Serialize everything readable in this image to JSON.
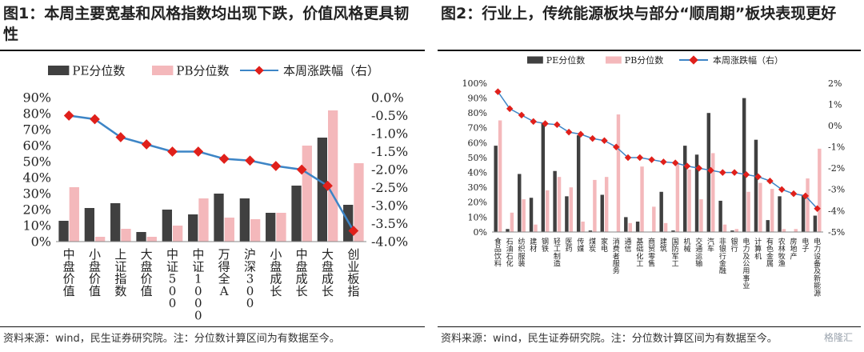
{
  "panels": [
    {
      "title": "图1：本周主要宽基和风格指数均出现下跌，价值风格更具韧性",
      "source": "资料来源：wind，民生证券研究院。注：分位数计算区间为有数据至今。"
    },
    {
      "title": "图2：行业上，传统能源板块与部分“顺周期”板块表现更好",
      "source": "资料来源：wind，民生证券研究院。注：分位数计算区间为有数据至今。"
    }
  ],
  "watermark": "格隆汇",
  "colors": {
    "pe": "#404040",
    "pb": "#f4b8bb",
    "line": "#3d85c6",
    "marker": "#e0201b"
  },
  "chart_data": [
    {
      "type": "bar",
      "legend": [
        "PE分位数",
        "PB分位数",
        "本周涨跌幅（右）"
      ],
      "legend_position": "top",
      "grid": false,
      "categories": [
        "中盘价值",
        "小盘价值",
        "上证指数",
        "大盘价值",
        "中证500",
        "中证1000",
        "万得全A",
        "沪深300",
        "小盘成长",
        "中盘成长",
        "大盘成长",
        "创业板指"
      ],
      "series": [
        {
          "name": "PE分位数",
          "axis": "left",
          "values": [
            13,
            21,
            24,
            6,
            20,
            17,
            30,
            27,
            18,
            35,
            65,
            23
          ]
        },
        {
          "name": "PB分位数",
          "axis": "left",
          "values": [
            34,
            3,
            8,
            3,
            10,
            27,
            15,
            14,
            18,
            60,
            82,
            49
          ]
        },
        {
          "name": "本周涨跌幅（右）",
          "axis": "right",
          "type": "line",
          "values": [
            -0.5,
            -0.6,
            -1.1,
            -1.3,
            -1.5,
            -1.5,
            -1.7,
            -1.75,
            -1.9,
            -2.0,
            -2.45,
            -3.7
          ]
        }
      ],
      "y_left": {
        "ylim": [
          0,
          90
        ],
        "ticks": [
          "0%",
          "10%",
          "20%",
          "30%",
          "40%",
          "50%",
          "60%",
          "70%",
          "80%",
          "90%"
        ]
      },
      "y_right": {
        "ylim": [
          -4.0,
          0.0
        ],
        "ticks": [
          "-4.0%",
          "-3.5%",
          "-3.0%",
          "-2.5%",
          "-2.0%",
          "-1.5%",
          "-1.0%",
          "-0.5%",
          "0.0%"
        ]
      }
    },
    {
      "type": "bar",
      "legend": [
        "PE分位数",
        "PB分位数",
        "本周涨跌幅（右）"
      ],
      "legend_position": "top",
      "grid": false,
      "categories": [
        "食品饮料",
        "石油石化",
        "纺织服装",
        "建材",
        "钢铁",
        "轻工制造",
        "医药",
        "传媒",
        "煤炭",
        "家电",
        "消费者服务",
        "通信",
        "基础化工",
        "商贸零售",
        "建筑",
        "国防军工",
        "机械",
        "交通运输",
        "汽车",
        "非银行金融",
        "银行",
        "电力及公用事业",
        "计算机",
        "有色金属",
        "农林牧渔",
        "房地产",
        "电子",
        "电力设备及新能源"
      ],
      "series": [
        {
          "name": "PE分位数",
          "axis": "left",
          "values": [
            58,
            2,
            39,
            23,
            73,
            41,
            24,
            65,
            1,
            25,
            0,
            10,
            7,
            0,
            27,
            1,
            58,
            52,
            80,
            21,
            1,
            90,
            62,
            8,
            24,
            0,
            25,
            11
          ]
        },
        {
          "name": "PB分位数",
          "axis": "left",
          "values": [
            75,
            13,
            22,
            5,
            28,
            37,
            30,
            7,
            35,
            37,
            79,
            6,
            44,
            17,
            6,
            46,
            42,
            22,
            53,
            5,
            2,
            27,
            33,
            29,
            2,
            2,
            36,
            56
          ]
        },
        {
          "name": "本周涨跌幅（右）",
          "axis": "right",
          "type": "line",
          "values": [
            1.6,
            0.8,
            0.5,
            0.2,
            0.1,
            0.05,
            -0.3,
            -0.4,
            -0.6,
            -0.7,
            -1.0,
            -1.5,
            -1.5,
            -1.6,
            -1.7,
            -1.75,
            -1.9,
            -2.0,
            -2.1,
            -2.2,
            -2.2,
            -2.3,
            -2.4,
            -2.6,
            -3.0,
            -3.2,
            -3.3,
            -3.9
          ]
        }
      ],
      "y_left": {
        "ylim": [
          0,
          100
        ],
        "ticks": [
          "0%",
          "10%",
          "20%",
          "30%",
          "40%",
          "50%",
          "60%",
          "70%",
          "80%",
          "90%",
          "100%"
        ]
      },
      "y_right": {
        "ylim": [
          -5,
          2
        ],
        "ticks": [
          "-5%",
          "-4%",
          "-3%",
          "-2%",
          "-1%",
          "0%",
          "1%",
          "2%"
        ]
      }
    }
  ]
}
